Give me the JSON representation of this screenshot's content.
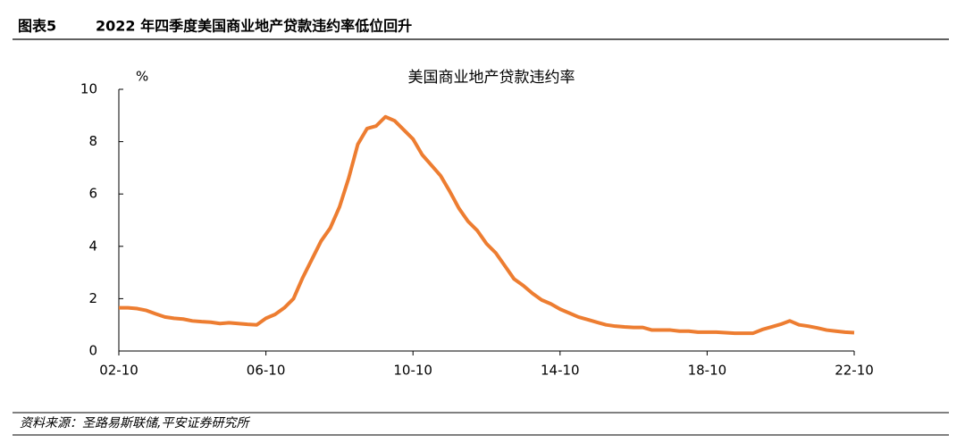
{
  "header": {
    "label": "图表5",
    "title": "2022 年四季度美国商业地产贷款违约率低位回升"
  },
  "footer": {
    "source": "资料来源：圣路易斯联储,平安证券研究所"
  },
  "chart_data": {
    "type": "line",
    "title": "美国商业地产贷款违约率",
    "y_label": "%",
    "categories": [
      "02-10",
      null,
      null,
      null,
      null,
      null,
      null,
      null,
      null,
      null,
      null,
      null,
      null,
      null,
      null,
      null,
      "06-10",
      null,
      null,
      null,
      null,
      null,
      null,
      null,
      null,
      null,
      null,
      null,
      null,
      null,
      null,
      null,
      "10-10",
      null,
      null,
      null,
      null,
      null,
      null,
      null,
      null,
      null,
      null,
      null,
      null,
      null,
      null,
      null,
      "14-10",
      null,
      null,
      null,
      null,
      null,
      null,
      null,
      null,
      null,
      null,
      null,
      null,
      null,
      null,
      null,
      "18-10",
      null,
      null,
      null,
      null,
      null,
      null,
      null,
      null,
      null,
      null,
      null,
      null,
      null,
      null,
      null,
      "22-10"
    ],
    "series": [
      {
        "name": "美国商业地产贷款违约率",
        "color": "#ed7d31",
        "values": [
          1.65,
          1.65,
          1.62,
          1.55,
          1.42,
          1.3,
          1.25,
          1.22,
          1.15,
          1.12,
          1.1,
          1.05,
          1.08,
          1.05,
          1.02,
          1.0,
          1.25,
          1.4,
          1.65,
          2.0,
          2.8,
          3.5,
          4.2,
          4.7,
          5.5,
          6.6,
          7.9,
          8.5,
          8.6,
          8.95,
          8.8,
          8.45,
          8.1,
          7.5,
          7.1,
          6.7,
          6.1,
          5.45,
          4.95,
          4.6,
          4.1,
          3.75,
          3.25,
          2.75,
          2.5,
          2.2,
          1.95,
          1.8,
          1.6,
          1.45,
          1.3,
          1.2,
          1.1,
          1.0,
          0.95,
          0.92,
          0.9,
          0.9,
          0.8,
          0.8,
          0.8,
          0.76,
          0.76,
          0.72,
          0.72,
          0.72,
          0.7,
          0.68,
          0.68,
          0.68,
          0.82,
          0.92,
          1.02,
          1.15,
          1.0,
          0.95,
          0.88,
          0.8,
          0.76,
          0.72,
          0.7
        ]
      }
    ],
    "ylim": [
      0,
      10
    ],
    "yticks": [
      0,
      2,
      4,
      6,
      8,
      10
    ]
  }
}
